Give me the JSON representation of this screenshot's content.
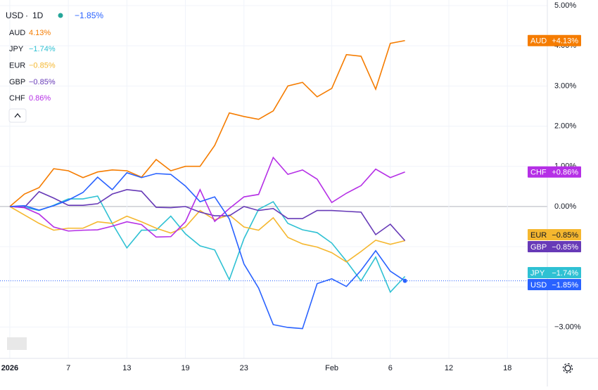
{
  "chart_data": {
    "type": "line",
    "symbol": "USD",
    "interval": "1D",
    "change": "−1.85%",
    "x": [
      0,
      1,
      2,
      3,
      4,
      5,
      6,
      7,
      8,
      9,
      10,
      11,
      12,
      13,
      14,
      15,
      16,
      17,
      18,
      19,
      20,
      21,
      22,
      23,
      24,
      25,
      26,
      27
    ],
    "xlim": [
      -0.67,
      36.73
    ],
    "xticks": [
      {
        "value": 0,
        "label": "2026"
      },
      {
        "value": 4,
        "label": "7"
      },
      {
        "value": 8,
        "label": "13"
      },
      {
        "value": 12,
        "label": "19"
      },
      {
        "value": 16,
        "label": "23"
      },
      {
        "value": 22,
        "label": "Feb"
      },
      {
        "value": 26,
        "label": "6"
      },
      {
        "value": 30,
        "label": "12"
      },
      {
        "value": 34,
        "label": "18"
      }
    ],
    "ylim": [
      -3.78,
      5.14
    ],
    "yticks": [
      {
        "value": 5,
        "label": "5.00%"
      },
      {
        "value": 4,
        "label": "4.00%"
      },
      {
        "value": 3,
        "label": "3.00%"
      },
      {
        "value": 2,
        "label": "2.00%"
      },
      {
        "value": 1,
        "label": "1.00%"
      },
      {
        "value": 0,
        "label": "0.00%"
      },
      {
        "value": -1,
        "label": "−1.00%"
      },
      {
        "value": -2,
        "label": "−2.00%"
      },
      {
        "value": -3,
        "label": "−3.00%"
      }
    ],
    "grid": true,
    "series": [
      {
        "name": "AUD",
        "color": "#f57c00",
        "legend_label": "4.13%",
        "axis_label": "+4.13%",
        "values": [
          0,
          0.31,
          0.47,
          0.94,
          0.89,
          0.72,
          0.86,
          0.91,
          0.89,
          0.73,
          1.17,
          0.89,
          1.0,
          1.0,
          1.52,
          2.33,
          2.24,
          2.17,
          2.38,
          3.0,
          3.09,
          2.73,
          2.94,
          3.78,
          3.74,
          2.92,
          4.06,
          4.13
        ]
      },
      {
        "name": "JPY",
        "color": "#2fc1d3",
        "legend_label": "−1.74%",
        "axis_label": "−1.74%",
        "values": [
          0,
          -0.02,
          -0.1,
          0.03,
          0.19,
          0.19,
          0.26,
          -0.42,
          -1.03,
          -0.59,
          -0.59,
          -0.24,
          -0.68,
          -0.98,
          -1.08,
          -1.82,
          -0.8,
          -0.07,
          0.12,
          -0.42,
          -0.58,
          -0.65,
          -0.91,
          -1.36,
          -1.85,
          -1.26,
          -2.13,
          -1.74
        ]
      },
      {
        "name": "EUR",
        "color": "#f5b72f",
        "legend_label": "−0.85%",
        "axis_label": "−0.85%",
        "values": [
          0,
          -0.21,
          -0.42,
          -0.59,
          -0.54,
          -0.54,
          -0.38,
          -0.42,
          -0.24,
          -0.38,
          -0.54,
          -0.66,
          -0.51,
          -0.1,
          -0.33,
          -0.21,
          -0.51,
          -0.59,
          -0.28,
          -0.77,
          -0.93,
          -1.01,
          -1.15,
          -1.38,
          -1.12,
          -0.84,
          -0.94,
          -0.85
        ]
      },
      {
        "name": "GBP",
        "color": "#673ab7",
        "legend_label": "−0.85%",
        "axis_label": "−0.85%",
        "values": [
          0,
          -0.02,
          0.37,
          0.21,
          0.03,
          0.03,
          0.07,
          0.31,
          0.42,
          0.38,
          -0.02,
          -0.03,
          0,
          -0.14,
          -0.23,
          -0.23,
          0,
          -0.1,
          -0.05,
          -0.3,
          -0.3,
          -0.1,
          -0.1,
          -0.12,
          -0.14,
          -0.7,
          -0.44,
          -0.85
        ]
      },
      {
        "name": "CHF",
        "color": "#b52fe6",
        "legend_label": "0.86%",
        "axis_label": "+0.86%",
        "values": [
          0,
          -0.03,
          -0.19,
          -0.51,
          -0.61,
          -0.59,
          -0.58,
          -0.49,
          -0.38,
          -0.45,
          -0.76,
          -0.75,
          -0.38,
          0.42,
          -0.37,
          -0.05,
          0.24,
          0.3,
          1.22,
          0.8,
          0.91,
          0.68,
          0.1,
          0.33,
          0.52,
          0.93,
          0.72,
          0.86
        ]
      },
      {
        "name": "USD",
        "color": "#2962ff",
        "axis_label": "−1.85%",
        "values": [
          0,
          0.02,
          -0.09,
          0.02,
          0.16,
          0.35,
          0.73,
          0.42,
          0.84,
          0.72,
          0.82,
          0.8,
          0.51,
          0.12,
          0.24,
          -0.31,
          -1.43,
          -2.03,
          -2.94,
          -3.01,
          -3.04,
          -1.92,
          -1.8,
          -1.99,
          -1.59,
          -1.1,
          -1.61,
          -1.85
        ]
      }
    ]
  }
}
